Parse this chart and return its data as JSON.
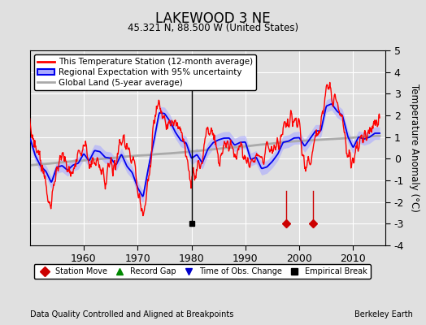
{
  "title": "LAKEWOOD 3 NE",
  "subtitle": "45.321 N, 88.500 W (United States)",
  "ylabel": "Temperature Anomaly (°C)",
  "xlabel_note": "Data Quality Controlled and Aligned at Breakpoints",
  "source_note": "Berkeley Earth",
  "ylim": [
    -4,
    5
  ],
  "xlim": [
    1950,
    2016
  ],
  "xticks": [
    1960,
    1970,
    1980,
    1990,
    2000,
    2010
  ],
  "yticks": [
    -4,
    -3,
    -2,
    -1,
    0,
    1,
    2,
    3,
    4,
    5
  ],
  "bg_color": "#e0e0e0",
  "plot_bg_color": "#e0e0e0",
  "grid_color": "#ffffff",
  "station_line_color": "#ff0000",
  "regional_line_color": "#0000ee",
  "regional_fill_color": "#aaaaff",
  "global_line_color": "#aaaaaa",
  "station_move_color": "#cc0000",
  "record_gap_color": "#008800",
  "tobs_color": "#0000cc",
  "emp_break_color": "#000000",
  "legend_items": [
    "This Temperature Station (12-month average)",
    "Regional Expectation with 95% uncertainty",
    "Global Land (5-year average)"
  ],
  "station_move_years": [
    1997.5,
    2002.5
  ],
  "empirical_break_years": [
    1980.0
  ],
  "station_move_line_years": [
    1997.5,
    2002.5
  ],
  "empirical_break_line_years": [
    1980.0
  ],
  "marker_y": -3.0
}
